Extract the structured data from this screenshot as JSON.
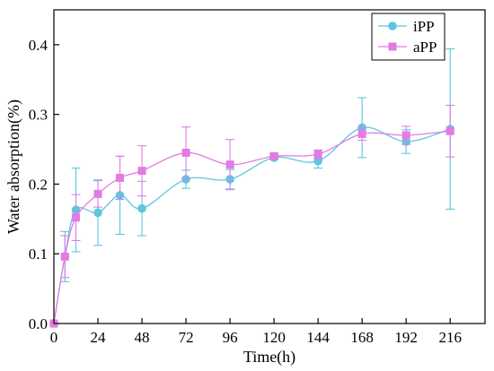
{
  "chart_data": {
    "type": "line",
    "xlabel": "Time(h)",
    "ylabel": "Water absorption(%)",
    "xlim": [
      0,
      235
    ],
    "ylim": [
      0,
      0.45
    ],
    "xticks": [
      0,
      24,
      48,
      72,
      96,
      120,
      144,
      168,
      192,
      216
    ],
    "yticks": [
      0.0,
      0.1,
      0.2,
      0.3,
      0.4
    ],
    "ytick_labels": [
      "0.0",
      "0.1",
      "0.2",
      "0.3",
      "0.4"
    ],
    "grid": false,
    "legend": "top-right",
    "series": [
      {
        "name": "iPP",
        "color": "#5bc8de",
        "marker": "circle",
        "x": [
          0,
          6,
          12,
          24,
          36,
          48,
          72,
          96,
          120,
          144,
          168,
          192,
          216
        ],
        "y": [
          0.0,
          0.096,
          0.163,
          0.159,
          0.184,
          0.165,
          0.207,
          0.207,
          0.238,
          0.233,
          0.281,
          0.261,
          0.279
        ],
        "err": [
          0.0,
          0.036,
          0.06,
          0.047,
          0.056,
          0.039,
          0.013,
          0.014,
          0.003,
          0.01,
          0.043,
          0.017,
          0.115
        ]
      },
      {
        "name": "aPP",
        "color": "#e27ce2",
        "marker": "square",
        "x": [
          0,
          6,
          12,
          24,
          36,
          48,
          72,
          96,
          120,
          144,
          168,
          192,
          216
        ],
        "y": [
          0.0,
          0.096,
          0.152,
          0.186,
          0.209,
          0.219,
          0.245,
          0.228,
          0.24,
          0.243,
          0.272,
          0.27,
          0.276
        ],
        "err": [
          0.0,
          0.03,
          0.033,
          0.019,
          0.031,
          0.036,
          0.037,
          0.036,
          0.004,
          0.006,
          0.009,
          0.013,
          0.037
        ]
      }
    ]
  }
}
